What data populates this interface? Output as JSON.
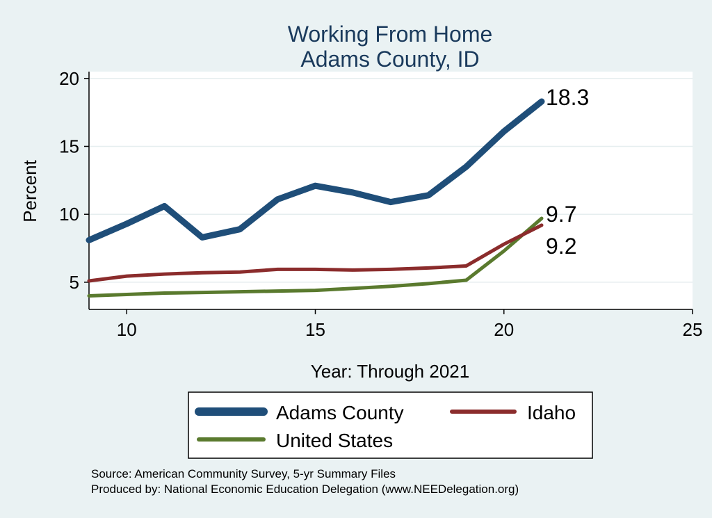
{
  "chart_data": {
    "type": "line",
    "title": "Working From Home",
    "subtitle": "Adams County, ID",
    "xlabel": "Year: Through 2021",
    "ylabel": "Percent",
    "xlim": [
      9,
      25
    ],
    "ylim": [
      3,
      20.5
    ],
    "xticks": [
      10,
      15,
      20,
      25
    ],
    "yticks": [
      5,
      10,
      15,
      20
    ],
    "grid": true,
    "legend_position": "bottom",
    "series": [
      {
        "name": "Adams County",
        "color": "#1f4e79",
        "x": [
          9,
          10,
          11,
          12,
          13,
          14,
          15,
          16,
          17,
          18,
          19,
          20,
          21
        ],
        "values": [
          8.1,
          9.3,
          10.6,
          8.3,
          8.9,
          11.1,
          12.1,
          11.6,
          10.9,
          11.4,
          13.5,
          16.1,
          18.3
        ],
        "end_label": "18.3"
      },
      {
        "name": "Idaho",
        "color": "#8b2c2c",
        "x": [
          9,
          10,
          11,
          12,
          13,
          14,
          15,
          16,
          17,
          18,
          19,
          20,
          21
        ],
        "values": [
          5.1,
          5.45,
          5.6,
          5.7,
          5.75,
          5.95,
          5.95,
          5.9,
          5.95,
          6.05,
          6.2,
          7.8,
          9.2
        ],
        "end_label": "9.2"
      },
      {
        "name": "United States",
        "color": "#5a7a2e",
        "x": [
          9,
          10,
          11,
          12,
          13,
          14,
          15,
          16,
          17,
          18,
          19,
          20,
          21
        ],
        "values": [
          4.0,
          4.1,
          4.2,
          4.25,
          4.3,
          4.35,
          4.4,
          4.55,
          4.7,
          4.9,
          5.15,
          7.3,
          9.7
        ],
        "end_label": "9.7"
      }
    ],
    "notes": [
      "Source: American Community Survey, 5-yr Summary Files",
      "Produced by: National Economic Education Delegation (www.NEEDelegation.org)"
    ]
  }
}
